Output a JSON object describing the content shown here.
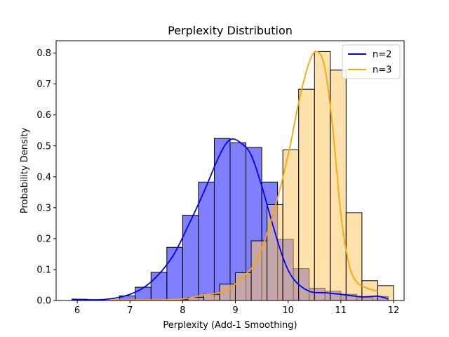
{
  "chart_data": {
    "type": "bar",
    "title": "Perplexity Distribution",
    "xlabel": "Perplexity (Add-1 Smoothing)",
    "ylabel": "Probability Density",
    "xlim": [
      5.6,
      12.2
    ],
    "ylim": [
      0,
      0.84
    ],
    "x_ticks": [
      6,
      7,
      8,
      9,
      10,
      11,
      12
    ],
    "y_ticks": [
      0.0,
      0.1,
      0.2,
      0.3,
      0.4,
      0.5,
      0.6,
      0.7,
      0.8
    ],
    "grid": false,
    "legend_position": "top-right",
    "series": [
      {
        "name": "n=2",
        "color": "#0000ff",
        "bar_color": "#8080ff",
        "bins": [
          {
            "x0": 5.9,
            "x1": 6.2,
            "value": 0.004
          },
          {
            "x0": 6.2,
            "x1": 6.5,
            "value": 0.0
          },
          {
            "x0": 6.5,
            "x1": 6.8,
            "value": 0.0
          },
          {
            "x0": 6.8,
            "x1": 7.1,
            "value": 0.015
          },
          {
            "x0": 7.1,
            "x1": 7.4,
            "value": 0.043
          },
          {
            "x0": 7.4,
            "x1": 7.7,
            "value": 0.091
          },
          {
            "x0": 7.7,
            "x1": 8.0,
            "value": 0.172
          },
          {
            "x0": 8.0,
            "x1": 8.3,
            "value": 0.276
          },
          {
            "x0": 8.3,
            "x1": 8.6,
            "value": 0.383
          },
          {
            "x0": 8.6,
            "x1": 8.9,
            "value": 0.524
          },
          {
            "x0": 8.9,
            "x1": 9.2,
            "value": 0.51
          },
          {
            "x0": 9.2,
            "x1": 9.5,
            "value": 0.495
          },
          {
            "x0": 9.5,
            "x1": 9.8,
            "value": 0.383
          },
          {
            "x0": 9.8,
            "x1": 10.1,
            "value": 0.198
          },
          {
            "x0": 10.1,
            "x1": 10.4,
            "value": 0.103
          },
          {
            "x0": 10.4,
            "x1": 10.7,
            "value": 0.04
          },
          {
            "x0": 10.7,
            "x1": 11.0,
            "value": 0.03
          },
          {
            "x0": 11.0,
            "x1": 11.3,
            "value": 0.02
          },
          {
            "x0": 11.3,
            "x1": 11.6,
            "value": 0.01
          },
          {
            "x0": 11.6,
            "x1": 11.9,
            "value": 0.013
          }
        ],
        "kde": [
          {
            "x": 5.9,
            "y": 0.004
          },
          {
            "x": 6.5,
            "y": 0.003
          },
          {
            "x": 7.0,
            "y": 0.02
          },
          {
            "x": 7.4,
            "y": 0.06
          },
          {
            "x": 7.8,
            "y": 0.14
          },
          {
            "x": 8.1,
            "y": 0.24
          },
          {
            "x": 8.4,
            "y": 0.35
          },
          {
            "x": 8.7,
            "y": 0.47
          },
          {
            "x": 8.9,
            "y": 0.52
          },
          {
            "x": 9.1,
            "y": 0.51
          },
          {
            "x": 9.3,
            "y": 0.47
          },
          {
            "x": 9.5,
            "y": 0.37
          },
          {
            "x": 9.7,
            "y": 0.25
          },
          {
            "x": 9.9,
            "y": 0.14
          },
          {
            "x": 10.1,
            "y": 0.07
          },
          {
            "x": 10.4,
            "y": 0.03
          },
          {
            "x": 10.7,
            "y": 0.025
          },
          {
            "x": 11.0,
            "y": 0.02
          },
          {
            "x": 11.4,
            "y": 0.012
          },
          {
            "x": 11.7,
            "y": 0.014
          },
          {
            "x": 11.9,
            "y": 0.005
          }
        ]
      },
      {
        "name": "n=3",
        "color": "#ffa500",
        "bar_color": "#ffc966",
        "bins": [
          {
            "x0": 6.6,
            "x1": 6.9,
            "value": 0.002
          },
          {
            "x0": 6.9,
            "x1": 7.2,
            "value": 0.0
          },
          {
            "x0": 7.2,
            "x1": 7.5,
            "value": 0.0
          },
          {
            "x0": 7.5,
            "x1": 7.8,
            "value": 0.0
          },
          {
            "x0": 7.8,
            "x1": 8.1,
            "value": 0.003
          },
          {
            "x0": 8.1,
            "x1": 8.4,
            "value": 0.01
          },
          {
            "x0": 8.4,
            "x1": 8.7,
            "value": 0.02
          },
          {
            "x0": 8.7,
            "x1": 9.0,
            "value": 0.053
          },
          {
            "x0": 9.0,
            "x1": 9.3,
            "value": 0.09
          },
          {
            "x0": 9.3,
            "x1": 9.6,
            "value": 0.193
          },
          {
            "x0": 9.6,
            "x1": 9.9,
            "value": 0.31
          },
          {
            "x0": 9.9,
            "x1": 10.2,
            "value": 0.487
          },
          {
            "x0": 10.2,
            "x1": 10.5,
            "value": 0.683
          },
          {
            "x0": 10.5,
            "x1": 10.8,
            "value": 0.805
          },
          {
            "x0": 10.8,
            "x1": 11.1,
            "value": 0.745
          },
          {
            "x0": 11.1,
            "x1": 11.4,
            "value": 0.284
          },
          {
            "x0": 11.4,
            "x1": 11.7,
            "value": 0.064
          },
          {
            "x0": 11.7,
            "x1": 12.0,
            "value": 0.048
          }
        ],
        "kde": [
          {
            "x": 6.6,
            "y": 0.002
          },
          {
            "x": 7.5,
            "y": 0.002
          },
          {
            "x": 8.0,
            "y": 0.005
          },
          {
            "x": 8.4,
            "y": 0.018
          },
          {
            "x": 8.8,
            "y": 0.03
          },
          {
            "x": 9.1,
            "y": 0.07
          },
          {
            "x": 9.4,
            "y": 0.13
          },
          {
            "x": 9.7,
            "y": 0.27
          },
          {
            "x": 10.0,
            "y": 0.47
          },
          {
            "x": 10.2,
            "y": 0.64
          },
          {
            "x": 10.4,
            "y": 0.77
          },
          {
            "x": 10.55,
            "y": 0.805
          },
          {
            "x": 10.7,
            "y": 0.75
          },
          {
            "x": 10.85,
            "y": 0.55
          },
          {
            "x": 11.0,
            "y": 0.28
          },
          {
            "x": 11.15,
            "y": 0.12
          },
          {
            "x": 11.3,
            "y": 0.06
          },
          {
            "x": 11.5,
            "y": 0.04
          },
          {
            "x": 11.7,
            "y": 0.03
          }
        ]
      }
    ]
  }
}
